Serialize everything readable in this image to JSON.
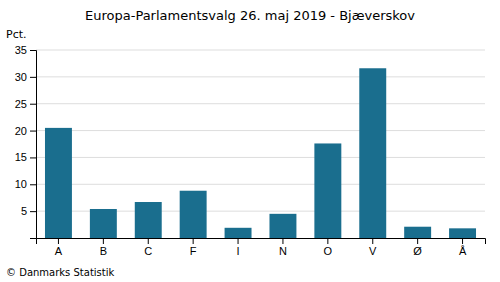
{
  "chart_data": {
    "type": "bar",
    "title": "Europa-Parlamentsvalg 26. maj 2019 - Bjæverskov",
    "categories": [
      "A",
      "B",
      "C",
      "F",
      "I",
      "N",
      "O",
      "V",
      "Ø",
      "Å"
    ],
    "values": [
      20.5,
      5.4,
      6.7,
      8.8,
      1.9,
      4.5,
      17.6,
      31.6,
      2.1,
      1.8
    ],
    "color": "#1a6e8e",
    "ylabel": "Pct.",
    "ylim": [
      0,
      35
    ],
    "yticks": [
      5,
      10,
      15,
      20,
      25,
      30,
      35
    ],
    "grid": true,
    "footer": "© Danmarks Statistik"
  }
}
